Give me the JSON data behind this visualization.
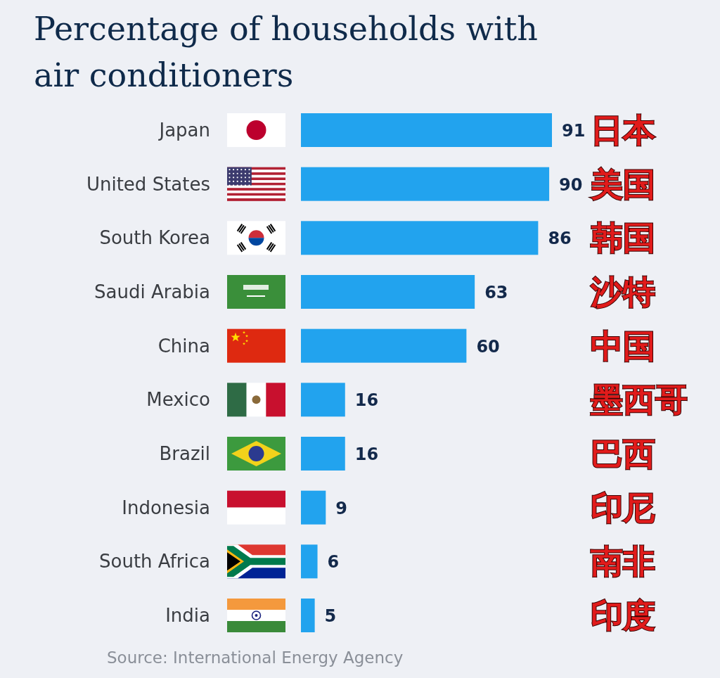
{
  "chart_data": {
    "type": "bar",
    "orientation": "horizontal",
    "title": "Percentage of households with air conditioners",
    "categories": [
      "Japan",
      "United States",
      "South Korea",
      "Saudi Arabia",
      "China",
      "Mexico",
      "Brazil",
      "Indonesia",
      "South Africa",
      "India"
    ],
    "values": [
      91,
      90,
      86,
      63,
      60,
      16,
      16,
      9,
      6,
      5
    ],
    "color": "#22a3ee",
    "data_labels": true,
    "annotations": [
      "日本",
      "美国",
      "韩国",
      "沙特",
      "中国",
      "墨西哥",
      "巴西",
      "印尼",
      "南非",
      "印度",
      "Source: International Energy Agency"
    ]
  }
}
